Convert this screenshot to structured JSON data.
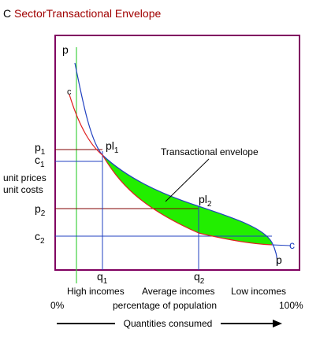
{
  "title": {
    "letter": "C",
    "text": "SectorTransactional Envelope"
  },
  "curves": {
    "p_top": "p",
    "c_top": "c",
    "c_end": "c",
    "p_end": "p"
  },
  "axis_labels": {
    "p1": {
      "main": "p",
      "sub": "1"
    },
    "c1": {
      "main": "c",
      "sub": "1"
    },
    "unit_prices": "unit prices",
    "unit_costs": "unit costs",
    "p2": {
      "main": "p",
      "sub": "2"
    },
    "c2": {
      "main": "c",
      "sub": "2"
    }
  },
  "points": {
    "pl1": {
      "main": "pl",
      "sub": "1"
    },
    "pl2": {
      "main": "pl",
      "sub": "2"
    }
  },
  "annotation": "Transactional envelope",
  "quantities": {
    "q1": {
      "main": "q",
      "sub": "1"
    },
    "q2": {
      "main": "q",
      "sub": "2"
    }
  },
  "incomes": [
    "High incomes",
    "Average incomes",
    "Low incomes"
  ],
  "population": {
    "start": "0%",
    "label": "percentage of population",
    "end": "100%"
  },
  "arrow_label": "Quantities consumed"
}
